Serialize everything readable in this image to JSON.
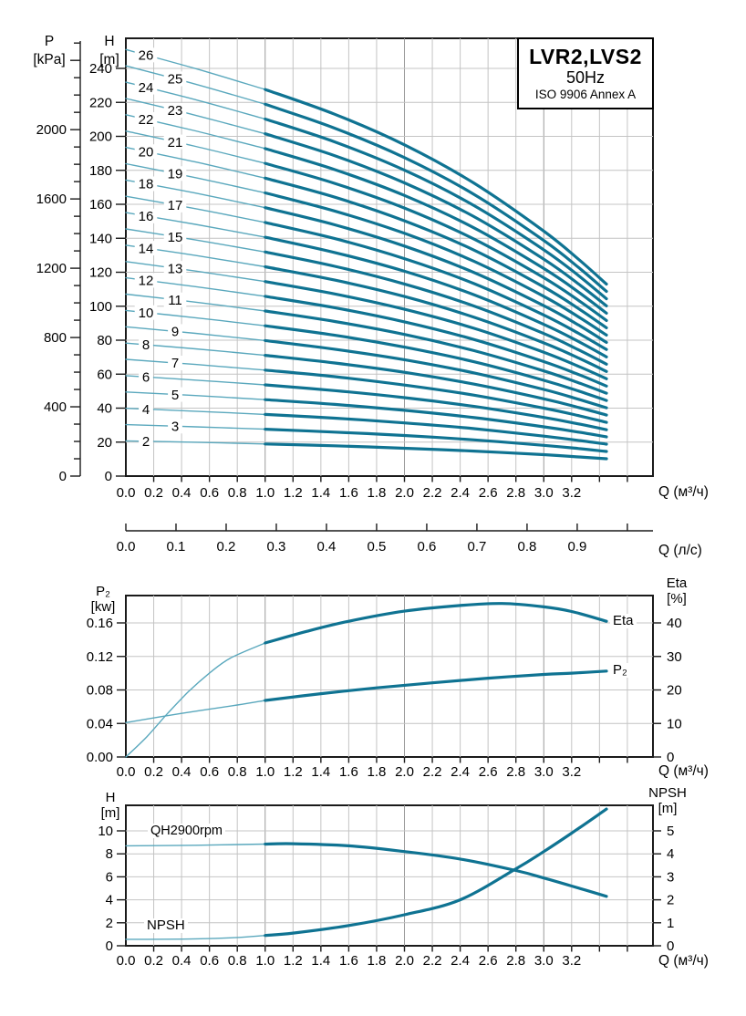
{
  "colors": {
    "curve_thick": "#0f7392",
    "curve_thin": "#5aa8bd",
    "grid": "#c4c4c4",
    "grid_major": "#9b9b9b",
    "axis": "#1a1a1a",
    "text": "#000000",
    "background": "#ffffff"
  },
  "labels": {
    "p_line1": "P",
    "p_line2": "[kPa]",
    "h_line1": "H",
    "h_line2": "[m]",
    "p2_line1": "P₂",
    "p2_line2": "[kw]",
    "eta_line1": "Eta",
    "eta_line2": "[%]",
    "bh_line1": "H",
    "bh_line2": "[m]",
    "npsh_line1": "NPSH",
    "npsh_line2": "[m]",
    "eta_curve": "Eta",
    "p2_curve": "P₂",
    "qh_curve": "QH2900rpm",
    "npsh_curve": "NPSH"
  },
  "chart_data": [
    {
      "id": "qh-stage-curves",
      "type": "line",
      "title": "LVR2,LVS2",
      "subtitle": "50Hz",
      "note": "ISO 9906 Annex A",
      "xlabel": "Q (м³/ч)",
      "xlabel_secondary": "Q (л/с)",
      "ylabel": "H [m]",
      "ylabel_outer": "P [kPa]",
      "xlim": [
        0,
        3.78
      ],
      "ylim": [
        0,
        258
      ],
      "grid": true,
      "x_ticks": [
        "0.0",
        "0.2",
        "0.4",
        "0.6",
        "0.8",
        "1.0",
        "1.2",
        "1.4",
        "1.6",
        "1.8",
        "2.0",
        "2.2",
        "2.4",
        "2.6",
        "2.8",
        "3.0",
        "3.2"
      ],
      "x2_ticks": [
        "0.0",
        "0.1",
        "0.2",
        "0.3",
        "0.4",
        "0.5",
        "0.6",
        "0.7",
        "0.8",
        "0.9"
      ],
      "h_ticks": [
        0,
        20,
        40,
        60,
        80,
        100,
        120,
        140,
        160,
        180,
        200,
        220,
        240
      ],
      "p_ticks": [
        0,
        400,
        800,
        1200,
        1600,
        2000
      ],
      "p_minor_step": 100,
      "p_max": 2500,
      "bold_from_q": 1.0,
      "q_samples": [
        0,
        0.5,
        1.0,
        1.5,
        2.0,
        2.5,
        3.0,
        3.25,
        3.45
      ],
      "series": [
        {
          "name": "2",
          "h": [
            20.7,
            19.9,
            18.9,
            17.8,
            16.4,
            14.7,
            12.6,
            11.3,
            10.2
          ]
        },
        {
          "name": "3",
          "h": [
            30.3,
            29.0,
            27.6,
            25.9,
            23.9,
            21.3,
            18.1,
            16.2,
            14.5
          ]
        },
        {
          "name": "4",
          "h": [
            39.9,
            38.2,
            36.3,
            34.1,
            31.3,
            27.9,
            23.5,
            21.0,
            18.8
          ]
        },
        {
          "name": "5",
          "h": [
            49.5,
            47.4,
            45.0,
            42.2,
            38.7,
            34.4,
            29.0,
            25.9,
            23.1
          ]
        },
        {
          "name": "6",
          "h": [
            59.1,
            56.5,
            53.7,
            50.3,
            46.2,
            41.0,
            34.5,
            30.7,
            27.3
          ]
        },
        {
          "name": "7",
          "h": [
            68.7,
            65.7,
            62.4,
            58.5,
            53.6,
            47.6,
            40.0,
            35.6,
            31.6
          ]
        },
        {
          "name": "8",
          "h": [
            78.3,
            74.9,
            71.1,
            66.6,
            61.1,
            54.1,
            45.5,
            40.4,
            35.9
          ]
        },
        {
          "name": "9",
          "h": [
            87.9,
            84.0,
            79.8,
            74.7,
            68.5,
            60.7,
            51.0,
            45.2,
            40.2
          ]
        },
        {
          "name": "10",
          "h": [
            97.5,
            93.2,
            88.5,
            82.9,
            75.9,
            67.3,
            56.4,
            50.1,
            44.5
          ]
        },
        {
          "name": "11",
          "h": [
            107.1,
            102.4,
            97.2,
            91.0,
            83.4,
            73.8,
            61.9,
            54.9,
            48.8
          ]
        },
        {
          "name": "12",
          "h": [
            116.7,
            111.5,
            105.8,
            99.1,
            90.8,
            80.4,
            67.4,
            59.8,
            53.0
          ]
        },
        {
          "name": "13",
          "h": [
            126.3,
            120.7,
            114.5,
            107.2,
            98.2,
            87.0,
            72.9,
            64.6,
            57.3
          ]
        },
        {
          "name": "14",
          "h": [
            135.9,
            129.9,
            123.2,
            115.4,
            105.7,
            93.5,
            78.4,
            69.5,
            61.6
          ]
        },
        {
          "name": "15",
          "h": [
            145.5,
            139.0,
            131.9,
            123.5,
            113.1,
            100.1,
            83.9,
            74.3,
            65.9
          ]
        },
        {
          "name": "16",
          "h": [
            155.1,
            148.2,
            140.6,
            131.6,
            120.6,
            106.7,
            89.3,
            79.2,
            70.2
          ]
        },
        {
          "name": "17",
          "h": [
            164.7,
            157.4,
            149.3,
            139.8,
            128.0,
            113.3,
            94.8,
            84.0,
            74.5
          ]
        },
        {
          "name": "18",
          "h": [
            174.3,
            166.6,
            158.0,
            147.9,
            135.4,
            119.8,
            100.3,
            88.9,
            78.7
          ]
        },
        {
          "name": "19",
          "h": [
            183.9,
            175.7,
            166.7,
            156.0,
            142.9,
            126.4,
            105.8,
            93.7,
            83.0
          ]
        },
        {
          "name": "20",
          "h": [
            193.5,
            184.9,
            175.4,
            164.2,
            150.3,
            133.0,
            111.3,
            98.6,
            87.3
          ]
        },
        {
          "name": "21",
          "h": [
            203.1,
            194.1,
            184.1,
            172.3,
            157.8,
            139.5,
            116.8,
            103.4,
            91.6
          ]
        },
        {
          "name": "22",
          "h": [
            212.7,
            203.2,
            192.8,
            180.4,
            165.2,
            146.1,
            122.2,
            108.3,
            95.9
          ]
        },
        {
          "name": "23",
          "h": [
            222.3,
            212.4,
            201.5,
            188.6,
            172.6,
            152.7,
            127.7,
            113.1,
            100.2
          ]
        },
        {
          "name": "24",
          "h": [
            231.9,
            221.6,
            210.2,
            196.7,
            180.1,
            159.2,
            133.2,
            118.0,
            104.4
          ]
        },
        {
          "name": "25",
          "h": [
            241.5,
            230.7,
            218.9,
            204.8,
            187.5,
            165.8,
            138.7,
            122.8,
            108.7
          ]
        },
        {
          "name": "26",
          "h": [
            251.1,
            239.9,
            227.6,
            213.0,
            195.0,
            172.4,
            144.2,
            127.6,
            113.0
          ]
        }
      ]
    },
    {
      "id": "power-efficiency",
      "type": "line",
      "xlabel": "Q (м³/ч)",
      "ylabel_left": "P₂ [kw]",
      "ylabel_right": "Eta [%]",
      "xlim": [
        0,
        3.78
      ],
      "p2_lim": [
        0,
        0.1926
      ],
      "eta_lim": [
        0,
        48.2
      ],
      "grid": true,
      "x_ticks": [
        "0.0",
        "0.2",
        "0.4",
        "0.6",
        "0.8",
        "1.0",
        "1.2",
        "1.4",
        "1.6",
        "1.8",
        "2.0",
        "2.2",
        "2.4",
        "2.6",
        "2.8",
        "3.0",
        "3.2"
      ],
      "p2_ticks": [
        "0.00",
        "0.04",
        "0.08",
        "0.12",
        "0.16"
      ],
      "eta_ticks": [
        0,
        10,
        20,
        30,
        40
      ],
      "bold_from_q": 1.0,
      "series": [
        {
          "name": "Eta",
          "axis": "eta",
          "q": [
            0,
            0.15,
            0.3,
            0.45,
            0.6,
            0.75,
            1.0,
            1.3,
            1.6,
            2.0,
            2.4,
            2.7,
            3.0,
            3.2,
            3.45
          ],
          "v": [
            0,
            6,
            13,
            19.5,
            25,
            29.5,
            34,
            37.5,
            40.5,
            43.5,
            45.2,
            45.8,
            44.8,
            43.4,
            40.5
          ]
        },
        {
          "name": "P₂",
          "axis": "p2",
          "q": [
            0,
            0.4,
            0.8,
            1.0,
            1.4,
            1.8,
            2.2,
            2.6,
            3.0,
            3.2,
            3.45
          ],
          "v": [
            0.041,
            0.052,
            0.062,
            0.0675,
            0.0755,
            0.0825,
            0.0885,
            0.094,
            0.0985,
            0.1,
            0.1025
          ]
        }
      ]
    },
    {
      "id": "qh-npsh",
      "type": "line",
      "xlabel": "Q (м³/ч)",
      "ylabel_left": "H [m]",
      "ylabel_right": "NPSH [m]",
      "xlim": [
        0,
        3.78
      ],
      "h_lim": [
        0,
        12.2
      ],
      "npsh_lim": [
        0,
        6.1
      ],
      "grid": true,
      "x_ticks": [
        "0.0",
        "0.2",
        "0.4",
        "0.6",
        "0.8",
        "1.0",
        "1.2",
        "1.4",
        "1.6",
        "1.8",
        "2.0",
        "2.2",
        "2.4",
        "2.6",
        "2.8",
        "3.0",
        "3.2"
      ],
      "h_ticks": [
        0,
        2,
        4,
        6,
        8,
        10
      ],
      "npsh_ticks": [
        0,
        1,
        2,
        3,
        4,
        5
      ],
      "bold_from_q": 1.0,
      "series": [
        {
          "name": "QH2900rpm",
          "axis": "h",
          "q": [
            0,
            0.5,
            1.0,
            1.2,
            1.6,
            2.0,
            2.4,
            2.8,
            3.0,
            3.2,
            3.45
          ],
          "v": [
            8.7,
            8.75,
            8.85,
            8.88,
            8.7,
            8.2,
            7.55,
            6.55,
            5.9,
            5.2,
            4.3
          ]
        },
        {
          "name": "NPSH",
          "axis": "npsh",
          "q": [
            0,
            0.5,
            0.8,
            1.0,
            1.2,
            1.6,
            2.0,
            2.4,
            2.8,
            3.0,
            3.2,
            3.45
          ],
          "v": [
            0.28,
            0.3,
            0.36,
            0.45,
            0.55,
            0.88,
            1.35,
            2.0,
            3.35,
            4.1,
            4.9,
            5.95
          ]
        }
      ]
    }
  ]
}
